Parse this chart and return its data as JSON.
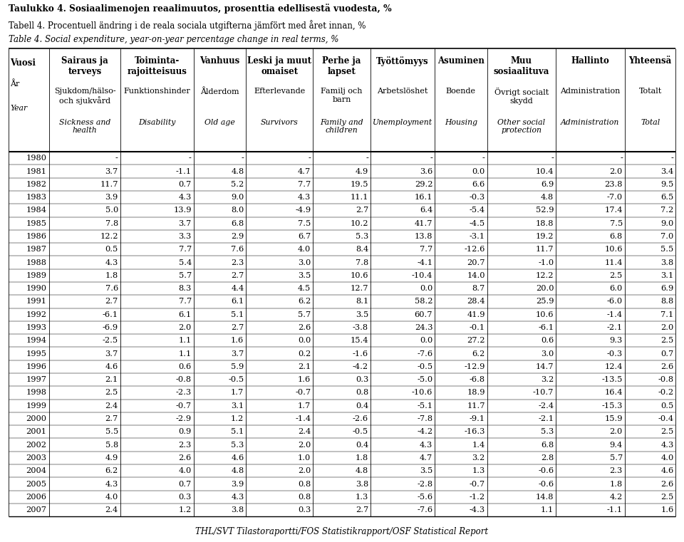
{
  "title1": "Taulukko 4. Sosiaalimenojen reaalimuutos, prosenttia edellisestä vuodesta, %",
  "title2": "Tabell 4. Procentuell ändring i de reala sociala utgifterna jämfört med året innan, %",
  "title3": "Table 4. Social expenditure, year-on-year percentage change in real terms, %",
  "footer": "THL/SVT Tilastoraportti/FOS Statistikrapport/OSF Statistical Report",
  "col_headers_fi": [
    "Vuosi",
    "Sairaus ja\nterveys",
    "Toiminta-\nrajoitteisuus",
    "Vanhuus",
    "Leski ja muut\nomaiset",
    "Perhe ja\nlapset",
    "Työttömyys",
    "Asuminen",
    "Muu\nsosiaalituva",
    "Hallinto",
    "Yhteensä"
  ],
  "col_headers_sv": [
    "År",
    "Sjukdom/hälso-\noch sjukvård",
    "Funktionshinder",
    "Ålderdom",
    "Efterlevande",
    "Familj och\nbarn",
    "Arbetslöshet",
    "Boende",
    "Övrigt socialt\nskydd",
    "Administration",
    "Totalt"
  ],
  "col_headers_en": [
    "Year",
    "Sickness and\nhealth",
    "Disability",
    "Old age",
    "Survivors",
    "Family and\nchildren",
    "Unemployment",
    "Housing",
    "Other social\nprotection",
    "Administration",
    "Total"
  ],
  "rows": [
    [
      1980,
      "-",
      "-",
      "-",
      "-",
      "-",
      "-",
      "-",
      "-",
      "-",
      "-"
    ],
    [
      1981,
      3.7,
      -1.1,
      4.8,
      4.7,
      4.9,
      3.6,
      0.0,
      10.4,
      2.0,
      3.4
    ],
    [
      1982,
      11.7,
      0.7,
      5.2,
      7.7,
      19.5,
      29.2,
      6.6,
      6.9,
      23.8,
      9.5
    ],
    [
      1983,
      3.9,
      4.3,
      9.0,
      4.3,
      11.1,
      16.1,
      -0.3,
      4.8,
      -7.0,
      6.5
    ],
    [
      1984,
      5.0,
      13.9,
      8.0,
      -4.9,
      2.7,
      6.4,
      -5.4,
      52.9,
      17.4,
      7.2
    ],
    [
      1985,
      7.8,
      3.7,
      6.8,
      7.5,
      10.2,
      41.7,
      -4.5,
      18.8,
      7.5,
      9.0
    ],
    [
      1986,
      12.2,
      3.3,
      2.9,
      6.7,
      5.3,
      13.8,
      -3.1,
      19.2,
      6.8,
      7.0
    ],
    [
      1987,
      0.5,
      7.7,
      7.6,
      4.0,
      8.4,
      7.7,
      -12.6,
      11.7,
      10.6,
      5.5
    ],
    [
      1988,
      4.3,
      5.4,
      2.3,
      3.0,
      7.8,
      -4.1,
      20.7,
      -1.0,
      11.4,
      3.8
    ],
    [
      1989,
      1.8,
      5.7,
      2.7,
      3.5,
      10.6,
      -10.4,
      14.0,
      12.2,
      2.5,
      3.1
    ],
    [
      1990,
      7.6,
      8.3,
      4.4,
      4.5,
      12.7,
      0.0,
      8.7,
      20.0,
      6.0,
      6.9
    ],
    [
      1991,
      2.7,
      7.7,
      6.1,
      6.2,
      8.1,
      58.2,
      28.4,
      25.9,
      -6.0,
      8.8
    ],
    [
      1992,
      -6.1,
      6.1,
      5.1,
      5.7,
      3.5,
      60.7,
      41.9,
      10.6,
      -1.4,
      7.1
    ],
    [
      1993,
      -6.9,
      2.0,
      2.7,
      2.6,
      -3.8,
      24.3,
      -0.1,
      -6.1,
      -2.1,
      2.0
    ],
    [
      1994,
      -2.5,
      1.1,
      1.6,
      0.0,
      15.4,
      0.0,
      27.2,
      0.6,
      9.3,
      2.5
    ],
    [
      1995,
      3.7,
      1.1,
      3.7,
      0.2,
      -1.6,
      -7.6,
      6.2,
      3.0,
      -0.3,
      0.7
    ],
    [
      1996,
      4.6,
      0.6,
      5.9,
      2.1,
      -4.2,
      -0.5,
      -12.9,
      14.7,
      12.4,
      2.6
    ],
    [
      1997,
      2.1,
      -0.8,
      -0.5,
      1.6,
      0.3,
      -5.0,
      -6.8,
      3.2,
      -13.5,
      -0.8
    ],
    [
      1998,
      2.5,
      -2.3,
      1.7,
      -0.7,
      0.8,
      -10.6,
      18.9,
      -10.7,
      16.4,
      -0.2
    ],
    [
      1999,
      2.4,
      -0.7,
      3.1,
      1.7,
      0.4,
      -5.1,
      11.7,
      -2.4,
      -15.3,
      0.5
    ],
    [
      2000,
      2.7,
      -2.9,
      1.2,
      -1.4,
      -2.6,
      -7.8,
      -9.1,
      -2.1,
      15.9,
      -0.4
    ],
    [
      2001,
      5.5,
      0.9,
      5.1,
      2.4,
      -0.5,
      -4.2,
      -16.3,
      5.3,
      2.0,
      2.5
    ],
    [
      2002,
      5.8,
      2.3,
      5.3,
      2.0,
      0.4,
      4.3,
      1.4,
      6.8,
      9.4,
      4.3
    ],
    [
      2003,
      4.9,
      2.6,
      4.6,
      1.0,
      1.8,
      4.7,
      3.2,
      2.8,
      5.7,
      4.0
    ],
    [
      2004,
      6.2,
      4.0,
      4.8,
      2.0,
      4.8,
      3.5,
      1.3,
      -0.6,
      2.3,
      4.6
    ],
    [
      2005,
      4.3,
      0.7,
      3.9,
      0.8,
      3.8,
      -2.8,
      -0.7,
      -0.6,
      1.8,
      2.6
    ],
    [
      2006,
      4.0,
      0.3,
      4.3,
      0.8,
      1.3,
      -5.6,
      -1.2,
      14.8,
      4.2,
      2.5
    ],
    [
      2007,
      2.4,
      1.2,
      3.8,
      0.3,
      2.7,
      -7.6,
      -4.3,
      1.1,
      -1.1,
      1.6
    ]
  ],
  "col_props": [
    0.063,
    0.108,
    0.112,
    0.08,
    0.102,
    0.088,
    0.098,
    0.08,
    0.105,
    0.105,
    0.078
  ]
}
